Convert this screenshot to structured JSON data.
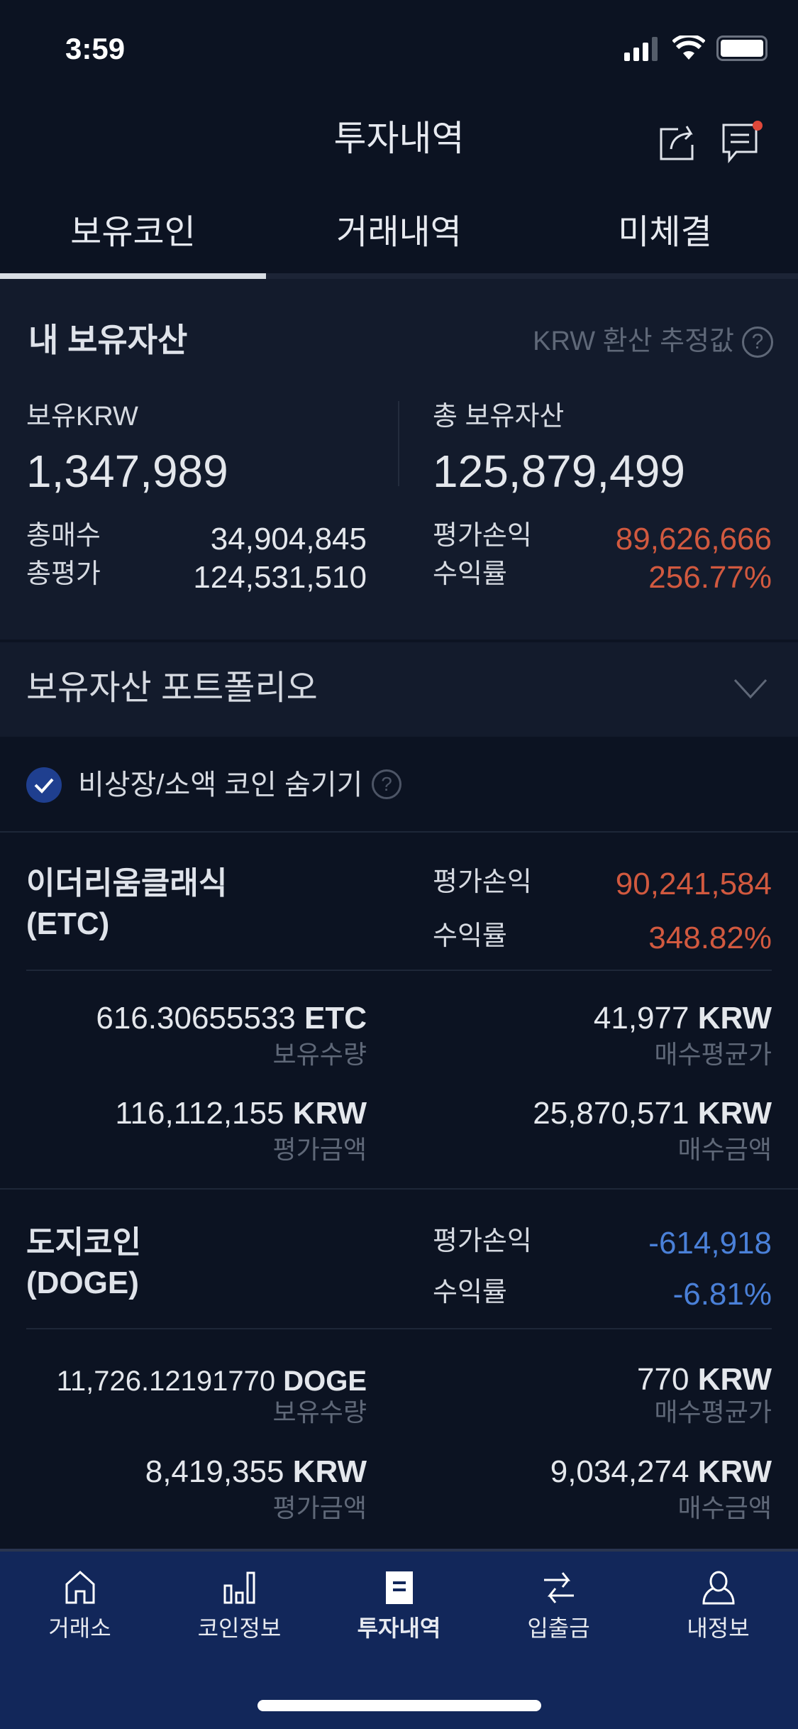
{
  "status_bar": {
    "time": "3:59"
  },
  "header": {
    "title": "투자내역",
    "icons": [
      "share-icon",
      "chat-notice-icon"
    ]
  },
  "tabs": [
    {
      "label": "보유코인",
      "active": true
    },
    {
      "label": "거래내역",
      "active": false
    },
    {
      "label": "미체결",
      "active": false
    }
  ],
  "summary": {
    "title": "내 보유자산",
    "estimate_note": "KRW 환산 추정값",
    "krw_label": "보유KRW",
    "krw_value": "1,347,989",
    "total_label": "총 보유자산",
    "total_value": "125,879,499",
    "buy_total_label": "총매수",
    "buy_total_value": "34,904,845",
    "eval_total_label": "총평가",
    "eval_total_value": "124,531,510",
    "pnl_label": "평가손익",
    "pnl_value": "89,626,666",
    "rate_label": "수익률",
    "rate_value": "256.77%"
  },
  "portfolio": {
    "label": "보유자산 포트폴리오"
  },
  "filter": {
    "label": "비상장/소액 코인 숨기기",
    "checked": true
  },
  "coins": [
    {
      "name": "이더리움클래식",
      "symbol": "(ETC)",
      "pnl_label": "평가손익",
      "pnl": "90,241,584",
      "rate_label": "수익률",
      "rate": "348.82%",
      "qty": "616.30655533",
      "qty_unit": "ETC",
      "qty_label": "보유수량",
      "avg": "41,977",
      "avg_unit": "KRW",
      "avg_label": "매수평균가",
      "eval": "116,112,155",
      "eval_unit": "KRW",
      "eval_label": "평가금액",
      "buy": "25,870,571",
      "buy_unit": "KRW",
      "buy_label": "매수금액"
    },
    {
      "name": "도지코인",
      "symbol": "(DOGE)",
      "pnl_label": "평가손익",
      "pnl": "-614,918",
      "rate_label": "수익률",
      "rate": "-6.81%",
      "qty": "11,726.12191770",
      "qty_unit": "DOGE",
      "qty_label": "보유수량",
      "avg": "770",
      "avg_unit": "KRW",
      "avg_label": "매수평균가",
      "eval": "8,419,355",
      "eval_unit": "KRW",
      "eval_label": "평가금액",
      "buy": "9,034,274",
      "buy_unit": "KRW",
      "buy_label": "매수금액"
    }
  ],
  "bottom_nav": [
    {
      "label": "거래소",
      "icon": "home-icon",
      "active": false
    },
    {
      "label": "코인정보",
      "icon": "bar-chart-icon",
      "active": false
    },
    {
      "label": "투자내역",
      "icon": "document-icon",
      "active": true
    },
    {
      "label": "입출금",
      "icon": "transfer-icon",
      "active": false
    },
    {
      "label": "내정보",
      "icon": "user-icon",
      "active": false
    }
  ],
  "colors": {
    "background": "#0c1322",
    "profit": "#d1593f",
    "loss": "#4a80d8",
    "nav_bg": "#12275a",
    "checkbox": "#1f3f8f"
  }
}
